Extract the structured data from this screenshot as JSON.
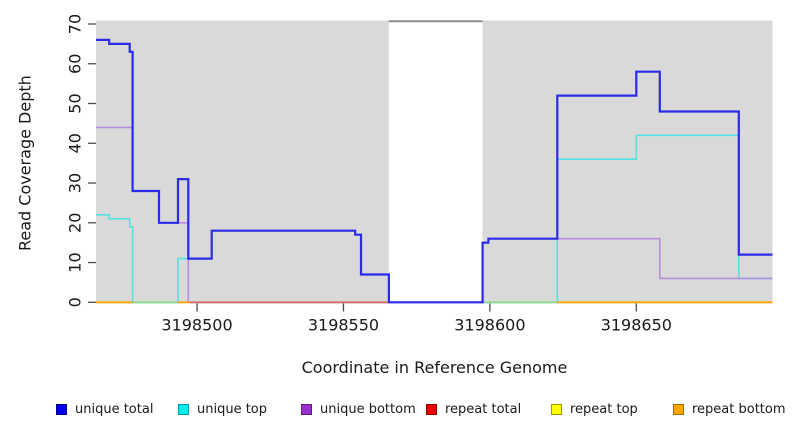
{
  "chart_data": {
    "type": "line",
    "subtype": "step-after-coverage-plot",
    "title": "",
    "xlabel": "Coordinate in Reference Genome",
    "ylabel": "Read Coverage Depth",
    "x_domain": [
      3198465.5,
      3198696.5
    ],
    "y_domain": [
      0,
      70.9
    ],
    "x_ticks": [
      3198500,
      3198550,
      3198600,
      3198650
    ],
    "x_tick_labels": [
      "3198500",
      "3198550",
      "3198600",
      "3198650"
    ],
    "y_ticks": [
      0,
      10,
      20,
      30,
      40,
      50,
      60,
      70
    ],
    "y_tick_labels": [
      "0",
      "10",
      "20",
      "30",
      "40",
      "50",
      "60",
      "70"
    ],
    "grid": false,
    "plot_bg_color": "#d9d9d9",
    "masked_region": {
      "from": 3198565.5,
      "to": 3198597.5,
      "fill": "#ffffff",
      "cap_value": 70.7,
      "cap_color": "#8c8c8c"
    },
    "series": [
      {
        "name": "unique total",
        "color": "#2a2ae8",
        "legend_fill": "#0000ee",
        "legend_border": "#000080",
        "width": 2.2,
        "draw": true,
        "points": [
          [
            3198465.5,
            66
          ],
          [
            3198470,
            65
          ],
          [
            3198477,
            63
          ],
          [
            3198478,
            28
          ],
          [
            3198487,
            20
          ],
          [
            3198493.5,
            31
          ],
          [
            3198497,
            11
          ],
          [
            3198505,
            18
          ],
          [
            3198554,
            17
          ],
          [
            3198556,
            7
          ],
          [
            3198565.5,
            0
          ],
          [
            3198597.5,
            15
          ],
          [
            3198599.5,
            16
          ],
          [
            3198623,
            52
          ],
          [
            3198650,
            58
          ],
          [
            3198658,
            48
          ],
          [
            3198685,
            12
          ],
          [
            3198696.5,
            12
          ]
        ]
      },
      {
        "name": "unique top",
        "color": "#55e2e2",
        "legend_fill": "#00eeee",
        "legend_border": "#00a0a0",
        "width": 1.6,
        "draw": true,
        "points": [
          [
            3198465.5,
            22
          ],
          [
            3198470,
            21
          ],
          [
            3198477,
            19
          ],
          [
            3198478,
            0
          ],
          [
            3198493.5,
            11
          ],
          [
            3198497,
            0
          ],
          [
            3198623,
            36
          ],
          [
            3198650,
            42
          ],
          [
            3198685,
            6
          ],
          [
            3198696.5,
            6
          ]
        ]
      },
      {
        "name": "unique bottom",
        "color": "#b78de0",
        "legend_fill": "#9a30d0",
        "legend_border": "#5e1a82",
        "width": 1.6,
        "draw": true,
        "points": [
          [
            3198465.5,
            44
          ],
          [
            3198478,
            28
          ],
          [
            3198487,
            20
          ],
          [
            3198497,
            0
          ],
          [
            3198597.5,
            15
          ],
          [
            3198599.5,
            16
          ],
          [
            3198658,
            6
          ],
          [
            3198696.5,
            6
          ]
        ]
      },
      {
        "name": "repeat total",
        "color": "#e06a6a",
        "legend_fill": "#ee0000",
        "legend_border": "#8b0000",
        "width": 1.6,
        "draw": false,
        "points": [
          [
            3198465.5,
            0
          ],
          [
            3198696.5,
            0
          ]
        ]
      },
      {
        "name": "repeat top",
        "color": "#f5f500",
        "legend_fill": "#ffff00",
        "legend_border": "#9b9b00",
        "width": 1.6,
        "draw": false,
        "points": [
          [
            3198465.5,
            0
          ],
          [
            3198696.5,
            0
          ]
        ]
      },
      {
        "name": "repeat bottom",
        "color": "#ffa500",
        "legend_fill": "#ffa500",
        "legend_border": "#a56a00",
        "width": 1.8,
        "draw": false,
        "points": [
          [
            3198465.5,
            0
          ],
          [
            3198696.5,
            0
          ]
        ]
      }
    ],
    "baseline_segments": [
      {
        "from": 3198465.5,
        "to": 3198478,
        "color": "#ffa500"
      },
      {
        "from": 3198478,
        "to": 3198493.5,
        "color": "#8fd88f"
      },
      {
        "from": 3198493.5,
        "to": 3198497.5,
        "color": "#ffa500"
      },
      {
        "from": 3198497.5,
        "to": 3198565.5,
        "color": "#e06a6a"
      },
      {
        "from": 3198597.5,
        "to": 3198623,
        "color": "#8fd88f"
      },
      {
        "from": 3198623,
        "to": 3198696.5,
        "color": "#ffa500"
      }
    ],
    "legend": {
      "position": "bottom",
      "items": [
        {
          "label": "unique total"
        },
        {
          "label": "unique top"
        },
        {
          "label": "unique bottom"
        },
        {
          "label": "repeat total"
        },
        {
          "label": "repeat top"
        },
        {
          "label": "repeat bottom"
        }
      ]
    }
  }
}
